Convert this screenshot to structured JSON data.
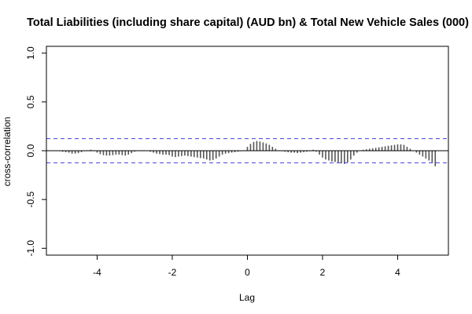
{
  "chart_data": {
    "type": "bar",
    "title": "Total Liabilities (including share capital) (AUD bn)  & Total New Vehicle Sales (000)",
    "xlabel": "Lag",
    "ylabel": "cross-correlation",
    "xlim": [
      -5.35,
      5.35
    ],
    "ylim": [
      -1.07,
      1.07
    ],
    "x_ticks": [
      -4,
      -2,
      0,
      2,
      4
    ],
    "x_tick_labels": [
      "-4",
      "-2",
      "0",
      "2",
      "4"
    ],
    "y_ticks": [
      -1.0,
      -0.5,
      0.0,
      0.5,
      1.0
    ],
    "y_tick_labels": [
      "-1.0",
      "-0.5",
      "0.0",
      "0.5",
      "1.0"
    ],
    "ci_bounds": [
      0.124,
      -0.124
    ],
    "lag_step": 0.0833,
    "x": [
      -5.0,
      -4.917,
      -4.833,
      -4.75,
      -4.667,
      -4.583,
      -4.5,
      -4.417,
      -4.333,
      -4.25,
      -4.167,
      -4.083,
      -4.0,
      -3.917,
      -3.833,
      -3.75,
      -3.667,
      -3.583,
      -3.5,
      -3.417,
      -3.333,
      -3.25,
      -3.167,
      -3.083,
      -3.0,
      -2.917,
      -2.833,
      -2.75,
      -2.667,
      -2.583,
      -2.5,
      -2.417,
      -2.333,
      -2.25,
      -2.167,
      -2.083,
      -2.0,
      -1.917,
      -1.833,
      -1.75,
      -1.667,
      -1.583,
      -1.5,
      -1.417,
      -1.333,
      -1.25,
      -1.167,
      -1.083,
      -1.0,
      -0.917,
      -0.833,
      -0.75,
      -0.667,
      -0.583,
      -0.5,
      -0.417,
      -0.333,
      -0.25,
      -0.167,
      -0.083,
      0.0,
      0.083,
      0.167,
      0.25,
      0.333,
      0.417,
      0.5,
      0.583,
      0.667,
      0.75,
      0.833,
      0.917,
      1.0,
      1.083,
      1.167,
      1.25,
      1.333,
      1.417,
      1.5,
      1.583,
      1.667,
      1.75,
      1.833,
      1.917,
      2.0,
      2.083,
      2.167,
      2.25,
      2.333,
      2.417,
      2.5,
      2.583,
      2.667,
      2.75,
      2.833,
      2.917,
      3.0,
      3.083,
      3.167,
      3.25,
      3.333,
      3.417,
      3.5,
      3.583,
      3.667,
      3.75,
      3.833,
      3.917,
      4.0,
      4.083,
      4.167,
      4.25,
      4.333,
      4.417,
      4.5,
      4.583,
      4.667,
      4.75,
      4.833,
      4.917,
      5.0
    ],
    "values": [
      -0.005,
      -0.01,
      -0.015,
      -0.02,
      -0.03,
      -0.03,
      -0.025,
      -0.015,
      -0.005,
      0.005,
      0.01,
      0.005,
      -0.02,
      -0.035,
      -0.045,
      -0.05,
      -0.05,
      -0.045,
      -0.04,
      -0.04,
      -0.045,
      -0.05,
      -0.04,
      -0.025,
      -0.01,
      0.0,
      0.005,
      0.005,
      0.0,
      -0.01,
      -0.02,
      -0.03,
      -0.035,
      -0.04,
      -0.04,
      -0.045,
      -0.06,
      -0.065,
      -0.06,
      -0.055,
      -0.05,
      -0.055,
      -0.06,
      -0.065,
      -0.07,
      -0.075,
      -0.08,
      -0.09,
      -0.1,
      -0.095,
      -0.08,
      -0.06,
      -0.04,
      -0.03,
      -0.025,
      -0.02,
      -0.015,
      -0.01,
      -0.005,
      0.005,
      0.04,
      0.07,
      0.09,
      0.1,
      0.095,
      0.085,
      0.075,
      0.06,
      0.04,
      0.02,
      0.005,
      -0.005,
      -0.01,
      -0.015,
      -0.02,
      -0.02,
      -0.025,
      -0.02,
      -0.015,
      -0.01,
      -0.005,
      0.01,
      -0.01,
      -0.04,
      -0.07,
      -0.09,
      -0.1,
      -0.11,
      -0.115,
      -0.12,
      -0.13,
      -0.135,
      -0.12,
      -0.09,
      -0.05,
      -0.02,
      0.0,
      0.01,
      0.015,
      0.02,
      0.025,
      0.03,
      0.035,
      0.04,
      0.045,
      0.05,
      0.055,
      0.06,
      0.065,
      0.065,
      0.06,
      0.04,
      0.02,
      0.0,
      -0.02,
      -0.04,
      -0.06,
      -0.08,
      -0.1,
      -0.12,
      -0.16
    ]
  }
}
